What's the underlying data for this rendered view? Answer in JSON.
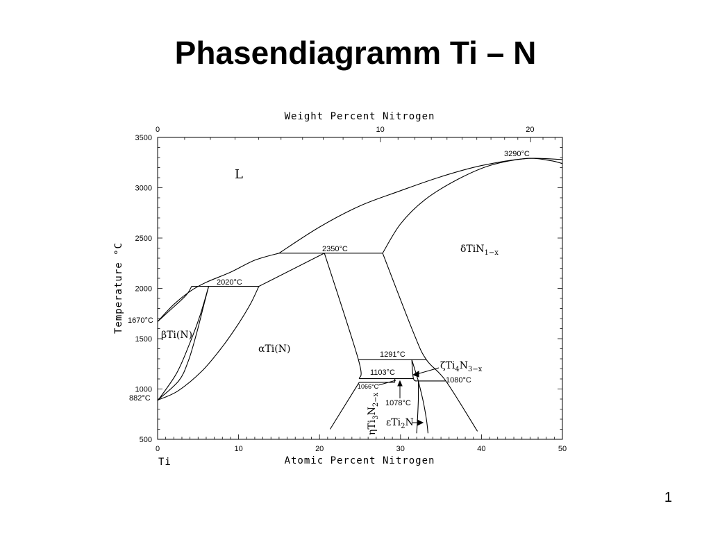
{
  "title": "Phasendiagramm Ti – N",
  "page_number": "1",
  "chart_data": {
    "type": "phase-diagram",
    "xlabel": "Atomic Percent Nitrogen",
    "x2label": "Weight Percent Nitrogen",
    "ylabel": "Temperature °C",
    "xlim": [
      0,
      50
    ],
    "ylim": [
      500,
      3500
    ],
    "x_ticks": [
      "0",
      "10",
      "20",
      "30",
      "40",
      "50"
    ],
    "x2_ticks": [
      {
        "label": "0",
        "at": 0
      },
      {
        "label": "10",
        "at": 27.5
      },
      {
        "label": "20",
        "at": 46.0
      }
    ],
    "y_ticks": [
      "500",
      "1000",
      "1500",
      "2000",
      "2500",
      "3000",
      "3500"
    ],
    "left_component": "Ti",
    "phases": [
      {
        "label": "L",
        "x": 10,
        "y": 3200
      },
      {
        "label": "βTi(N)",
        "x": 2.2,
        "y": 1540
      },
      {
        "label": "αTi(N)",
        "x": 12.4,
        "y": 1390
      },
      {
        "label": "δTiN1−x",
        "x": 37.4,
        "y": 2380
      },
      {
        "label": "ζTi4N3−x",
        "x": 35.3,
        "y": 1240
      },
      {
        "label": "ηTi3N2−x",
        "x": 26.3,
        "y": 710
      },
      {
        "label": "εTi2N",
        "x": 28.4,
        "y": 660
      }
    ],
    "phase_label_parts": {
      "L": "L",
      "beta": "βTi(N)",
      "alpha": "αTi(N)",
      "delta": [
        "δTiN",
        "1−x"
      ],
      "zeta": [
        "ζTi",
        "4",
        "N",
        "3−x"
      ],
      "eta": [
        "ηTi",
        "3",
        "N",
        "2−x"
      ],
      "eps": [
        "εTi",
        "2",
        "N"
      ]
    },
    "temperatures": [
      {
        "label": "3290°C",
        "x": 45.5,
        "y": 3290
      },
      {
        "label": "2350°C",
        "x": 20.6,
        "y": 2350
      },
      {
        "label": "2020°C",
        "x": 9.2,
        "y": 2020
      },
      {
        "label": "1670°C",
        "x": 0,
        "y": 1670
      },
      {
        "label": "882°C",
        "x": 0,
        "y": 882
      },
      {
        "label": "1291°C",
        "x": 29.0,
        "y": 1291
      },
      {
        "label": "1103°C",
        "x": 27.4,
        "y": 1103
      },
      {
        "label": "1066°C",
        "x": 26.1,
        "y": 1066
      },
      {
        "label": "1078°C",
        "x": 30.1,
        "y": 1078
      },
      {
        "label": "1080°C",
        "x": 35.3,
        "y": 1080
      }
    ],
    "phase_boundaries": [
      {
        "name": "liquidus-left",
        "points": [
          [
            0,
            1670
          ],
          [
            2,
            1840
          ],
          [
            4,
            1970
          ],
          [
            6,
            2060
          ],
          [
            9,
            2160
          ],
          [
            12,
            2280
          ],
          [
            15,
            2350
          ]
        ]
      },
      {
        "name": "liquidus-main",
        "points": [
          [
            15,
            2350
          ],
          [
            20,
            2610
          ],
          [
            25,
            2820
          ],
          [
            30,
            2970
          ],
          [
            35,
            3110
          ],
          [
            40,
            3220
          ],
          [
            45.5,
            3290
          ],
          [
            50,
            3280
          ]
        ]
      },
      {
        "name": "solidus-delta",
        "points": [
          [
            27.8,
            2350
          ],
          [
            30,
            2640
          ],
          [
            33,
            2880
          ],
          [
            37,
            3080
          ],
          [
            41,
            3220
          ],
          [
            45.5,
            3290
          ],
          [
            48.5,
            3270
          ],
          [
            50,
            3240
          ]
        ]
      },
      {
        "name": "beta-solidus",
        "points": [
          [
            0,
            1670
          ],
          [
            1.5,
            1780
          ],
          [
            3.5,
            1930
          ],
          [
            4.2,
            2020
          ]
        ]
      },
      {
        "name": "beta-solvus-right",
        "points": [
          [
            6.3,
            2020
          ],
          [
            5.6,
            1800
          ],
          [
            4.8,
            1550
          ],
          [
            3.8,
            1280
          ],
          [
            2.6,
            1080
          ],
          [
            0,
            890
          ]
        ]
      },
      {
        "name": "beta-solvus-left",
        "points": [
          [
            6.3,
            2020
          ],
          [
            5.2,
            1720
          ],
          [
            3.8,
            1420
          ],
          [
            2.3,
            1150
          ],
          [
            0,
            882
          ]
        ]
      },
      {
        "name": "alpha-beta-right",
        "points": [
          [
            12.5,
            2020
          ],
          [
            11.5,
            1850
          ],
          [
            10,
            1650
          ],
          [
            8,
            1420
          ],
          [
            5.5,
            1180
          ],
          [
            2.5,
            980
          ],
          [
            0,
            890
          ]
        ]
      },
      {
        "name": "alpha-delta-right",
        "points": [
          [
            12.5,
            2020
          ],
          [
            20.6,
            2350
          ]
        ]
      },
      {
        "name": "peritectic-2020",
        "points": [
          [
            4.2,
            2020
          ],
          [
            12.5,
            2020
          ]
        ]
      },
      {
        "name": "peritectic-2350",
        "points": [
          [
            15,
            2350
          ],
          [
            27.8,
            2350
          ]
        ]
      },
      {
        "name": "alpha-solvus-delta",
        "points": [
          [
            20.6,
            2350
          ],
          [
            24.8,
            1291
          ],
          [
            24.9,
            1103
          ]
        ]
      },
      {
        "name": "delta-lower-left",
        "points": [
          [
            27.8,
            2350
          ],
          [
            31.6,
            1560
          ],
          [
            33.2,
            1291
          ],
          [
            35.6,
            1080
          ],
          [
            39.5,
            580
          ]
        ]
      },
      {
        "name": "alpha-lower",
        "points": [
          [
            24.9,
            1066
          ],
          [
            21.3,
            600
          ]
        ]
      },
      {
        "name": "zeta-line-1291",
        "points": [
          [
            24.8,
            1291
          ],
          [
            33.2,
            1291
          ]
        ]
      },
      {
        "name": "zeta-line-1103",
        "points": [
          [
            24.9,
            1103
          ],
          [
            31.6,
            1103
          ]
        ]
      },
      {
        "name": "line-1066",
        "points": [
          [
            24.9,
            1066
          ],
          [
            29.3,
            1066
          ]
        ]
      },
      {
        "name": "line-1080",
        "points": [
          [
            32.2,
            1080
          ],
          [
            35.6,
            1080
          ]
        ]
      },
      {
        "name": "zeta-left",
        "points": [
          [
            31.4,
            1291
          ],
          [
            31.6,
            1103
          ],
          [
            32.2,
            1080
          ]
        ]
      },
      {
        "name": "zeta-right",
        "points": [
          [
            31.4,
            1291
          ],
          [
            32.2,
            1080
          ]
        ]
      },
      {
        "name": "eps-left",
        "points": [
          [
            32.2,
            1080
          ],
          [
            32.2,
            900
          ],
          [
            32.1,
            700
          ],
          [
            32,
            560
          ]
        ]
      },
      {
        "name": "eps-right",
        "points": [
          [
            32.2,
            1080
          ],
          [
            32.8,
            880
          ],
          [
            33.2,
            700
          ],
          [
            33.4,
            560
          ]
        ]
      },
      {
        "name": "eta-box-right",
        "points": [
          [
            29.3,
            1103
          ],
          [
            29.3,
            1066
          ]
        ]
      }
    ]
  }
}
